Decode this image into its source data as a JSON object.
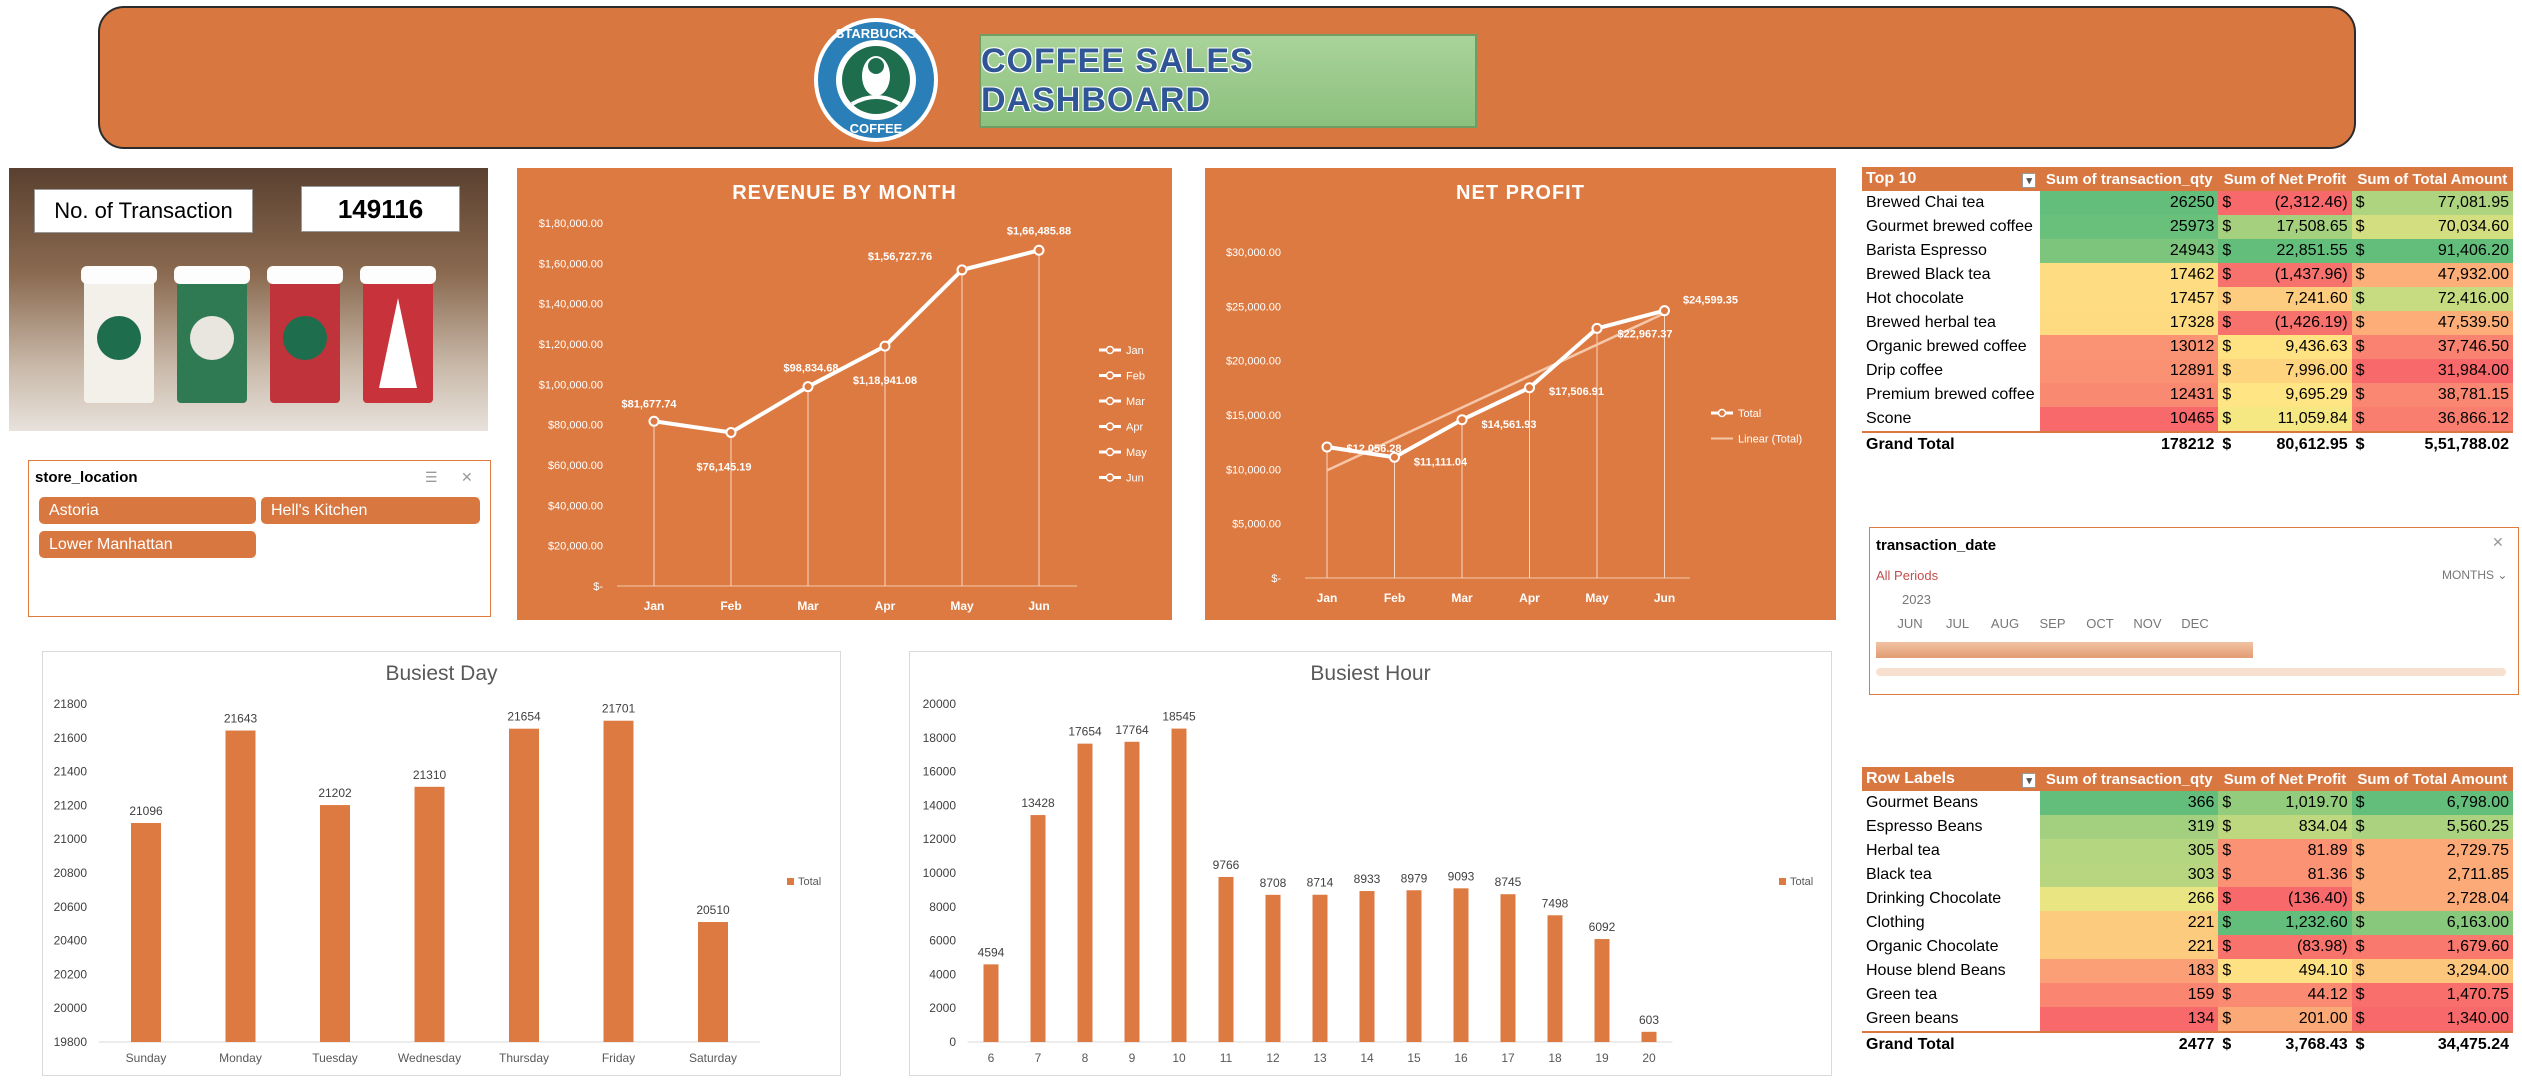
{
  "header": {
    "title": "COFFEE SALES DASHBOARD",
    "logo_text": "STARBUCKS COFFEE"
  },
  "kpi": {
    "label": "No. of Transaction",
    "value": "149116"
  },
  "store_slicer": {
    "title": "store_location",
    "items": [
      "Astoria",
      "Hell's Kitchen",
      "Lower Manhattan"
    ]
  },
  "date_slicer": {
    "title": "transaction_date",
    "all_periods": "All Periods",
    "level": "MONTHS",
    "year": "2023",
    "months": [
      "JUN",
      "JUL",
      "AUG",
      "SEP",
      "OCT",
      "NOV",
      "DEC"
    ]
  },
  "colors": {
    "accent": "#D97740",
    "panel": "#DD7A41",
    "title": "#2f5597"
  },
  "chart_data": [
    {
      "type": "line",
      "title": "REVENUE BY MONTH",
      "categories": [
        "Jan",
        "Feb",
        "Mar",
        "Apr",
        "May",
        "Jun"
      ],
      "values": [
        81677.74,
        76145.19,
        98834.68,
        118941.08,
        156727.76,
        166485.88
      ],
      "labels": [
        "$81,677.74",
        "$76,145.19",
        "$98,834.68",
        "$1,18,941.08",
        "$1,56,727.76",
        "$1,66,485.88"
      ],
      "y_ticks": [
        "$-",
        "$20,000.00",
        "$40,000.00",
        "$60,000.00",
        "$80,000.00",
        "$1,00,000.00",
        "$1,20,000.00",
        "$1,40,000.00",
        "$1,60,000.00",
        "$1,80,000.00"
      ],
      "ylim": [
        0,
        180000
      ],
      "legend": [
        "Jan",
        "Feb",
        "Mar",
        "Apr",
        "May",
        "Jun"
      ],
      "legend_position": "right"
    },
    {
      "type": "line",
      "title": "NET PROFIT",
      "categories": [
        "Jan",
        "Feb",
        "Mar",
        "Apr",
        "May",
        "Jun"
      ],
      "values": [
        12056.28,
        11111.04,
        14561.93,
        17506.91,
        22967.37,
        24599.35
      ],
      "labels": [
        "$12,056.28",
        "$11,111.04",
        "$14,561.93",
        "$17,506.91",
        "$22,967.37",
        "$24,599.35"
      ],
      "y_ticks": [
        "$-",
        "$5,000.00",
        "$10,000.00",
        "$15,000.00",
        "$20,000.00",
        "$25,000.00",
        "$30,000.00"
      ],
      "ylim": [
        0,
        30000
      ],
      "legend": [
        "Total",
        "Linear (Total)"
      ],
      "legend_position": "right",
      "trendline": "linear"
    },
    {
      "type": "bar",
      "title": "Busiest Day",
      "categories": [
        "Sunday",
        "Monday",
        "Tuesday",
        "Wednesday",
        "Thursday",
        "Friday",
        "Saturday"
      ],
      "values": [
        21096,
        21643,
        21202,
        21310,
        21654,
        21701,
        20510
      ],
      "ylim": [
        19800,
        21800
      ],
      "y_ticks": [
        "19800",
        "20000",
        "20200",
        "20400",
        "20600",
        "20800",
        "21000",
        "21200",
        "21400",
        "21600",
        "21800"
      ],
      "legend": [
        "Total"
      ],
      "legend_position": "right"
    },
    {
      "type": "bar",
      "title": "Busiest Hour",
      "categories": [
        "6",
        "7",
        "8",
        "9",
        "10",
        "11",
        "12",
        "13",
        "14",
        "15",
        "16",
        "17",
        "18",
        "19",
        "20"
      ],
      "values": [
        4594,
        13428,
        17654,
        17764,
        18545,
        9766,
        8708,
        8714,
        8933,
        8979,
        9093,
        8745,
        7498,
        6092,
        603
      ],
      "ylim": [
        0,
        20000
      ],
      "y_ticks": [
        "0",
        "2000",
        "4000",
        "6000",
        "8000",
        "10000",
        "12000",
        "14000",
        "16000",
        "18000",
        "20000"
      ],
      "legend": [
        "Total"
      ],
      "legend_position": "right"
    },
    {
      "type": "table",
      "columns": [
        "Top 10",
        "Sum of transaction_qty",
        "Sum of Net Profit",
        "Sum of Total Amount"
      ],
      "rows": [
        {
          "label": "Brewed Chai tea",
          "qty": "26250",
          "profit": "(2,312.46)",
          "amount": "77,081.95"
        },
        {
          "label": "Gourmet brewed coffee",
          "qty": "25973",
          "profit": "17,508.65",
          "amount": "70,034.60"
        },
        {
          "label": "Barista Espresso",
          "qty": "24943",
          "profit": "22,851.55",
          "amount": "91,406.20"
        },
        {
          "label": "Brewed Black tea",
          "qty": "17462",
          "profit": "(1,437.96)",
          "amount": "47,932.00"
        },
        {
          "label": "Hot chocolate",
          "qty": "17457",
          "profit": "7,241.60",
          "amount": "72,416.00"
        },
        {
          "label": "Brewed herbal tea",
          "qty": "17328",
          "profit": "(1,426.19)",
          "amount": "47,539.50"
        },
        {
          "label": "Organic brewed coffee",
          "qty": "13012",
          "profit": "9,436.63",
          "amount": "37,746.50"
        },
        {
          "label": "Drip coffee",
          "qty": "12891",
          "profit": "7,996.00",
          "amount": "31,984.00"
        },
        {
          "label": "Premium brewed coffee",
          "qty": "12431",
          "profit": "9,695.29",
          "amount": "38,781.15"
        },
        {
          "label": "Scone",
          "qty": "10465",
          "profit": "11,059.84",
          "amount": "36,866.12"
        }
      ],
      "total": {
        "label": "Grand Total",
        "qty": "178212",
        "profit": "80,612.95",
        "amount": "5,51,788.02"
      }
    },
    {
      "type": "table",
      "columns": [
        "Row Labels",
        "Sum of transaction_qty",
        "Sum of Net Profit",
        "Sum of Total Amount"
      ],
      "rows": [
        {
          "label": "Gourmet Beans",
          "qty": "366",
          "profit": "1,019.70",
          "amount": "6,798.00"
        },
        {
          "label": "Espresso Beans",
          "qty": "319",
          "profit": "834.04",
          "amount": "5,560.25"
        },
        {
          "label": "Herbal tea",
          "qty": "305",
          "profit": "81.89",
          "amount": "2,729.75"
        },
        {
          "label": "Black tea",
          "qty": "303",
          "profit": "81.36",
          "amount": "2,711.85"
        },
        {
          "label": "Drinking Chocolate",
          "qty": "266",
          "profit": "(136.40)",
          "amount": "2,728.04"
        },
        {
          "label": "Clothing",
          "qty": "221",
          "profit": "1,232.60",
          "amount": "6,163.00"
        },
        {
          "label": "Organic Chocolate",
          "qty": "221",
          "profit": "(83.98)",
          "amount": "1,679.60"
        },
        {
          "label": "House blend Beans",
          "qty": "183",
          "profit": "494.10",
          "amount": "3,294.00"
        },
        {
          "label": "Green tea",
          "qty": "159",
          "profit": "44.12",
          "amount": "1,470.75"
        },
        {
          "label": "Green beans",
          "qty": "134",
          "profit": "201.00",
          "amount": "1,340.00"
        }
      ],
      "total": {
        "label": "Grand Total",
        "qty": "2477",
        "profit": "3,768.43",
        "amount": "34,475.24"
      }
    }
  ]
}
